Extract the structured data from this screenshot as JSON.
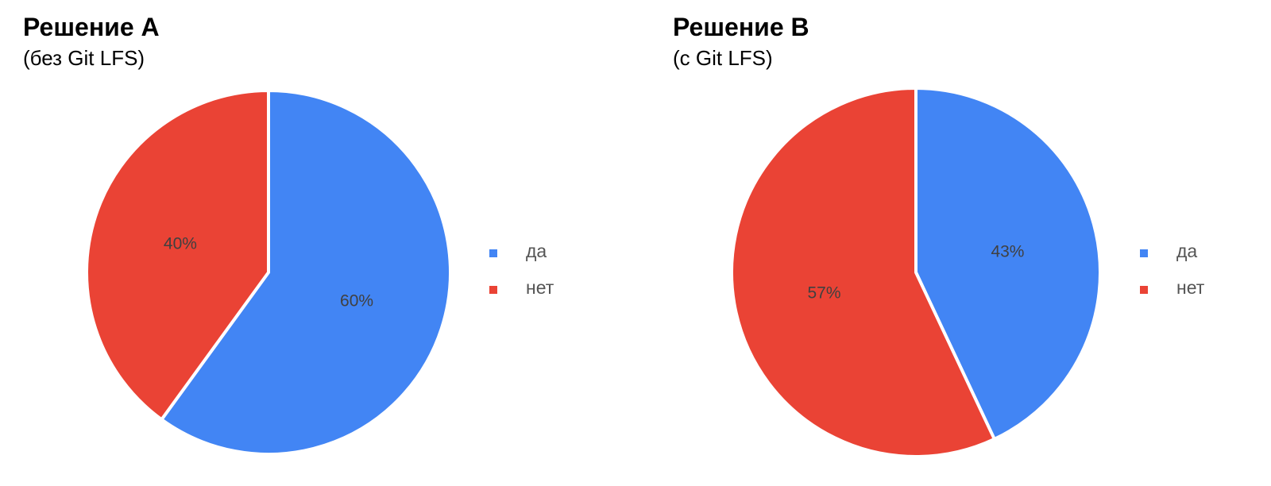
{
  "chart_data": [
    {
      "type": "pie",
      "title": "Решение A",
      "subtitle": "(без Git LFS)",
      "slices": [
        {
          "label": "да",
          "value": 60,
          "display": "60%",
          "color": "#4285f4"
        },
        {
          "label": "нет",
          "value": 40,
          "display": "40%",
          "color": "#ea4335"
        }
      ],
      "legend": [
        "да",
        "нет"
      ],
      "legend_position": "right"
    },
    {
      "type": "pie",
      "title": "Решение B",
      "subtitle": "(с Git LFS)",
      "slices": [
        {
          "label": "да",
          "value": 43,
          "display": "43%",
          "color": "#4285f4"
        },
        {
          "label": "нет",
          "value": 57,
          "display": "57%",
          "color": "#ea4335"
        }
      ],
      "legend": [
        "да",
        "нет"
      ],
      "legend_position": "right"
    }
  ]
}
